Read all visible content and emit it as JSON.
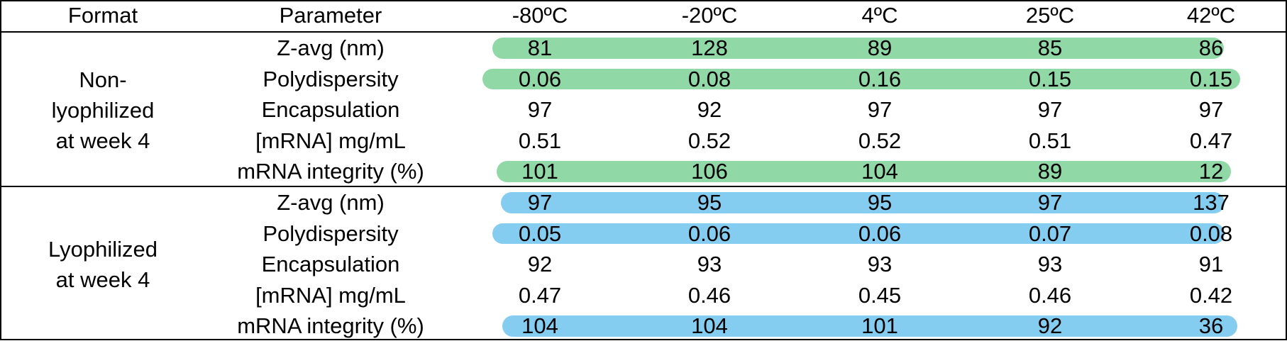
{
  "header": {
    "format": "Format",
    "parameter": "Parameter",
    "temps": [
      "-80ºC",
      "-20ºC",
      "4ºC",
      "25ºC",
      "42ºC"
    ]
  },
  "colors": {
    "green": "#90d9a6",
    "blue": "#84cdf0"
  },
  "groups": [
    {
      "format_lines": [
        "Non-",
        "lyophilized",
        "at week 4"
      ],
      "highlight_color": "green",
      "rows": [
        {
          "parameter": "Z-avg (nm)",
          "values": [
            "81",
            "128",
            "89",
            "85",
            "86"
          ],
          "highlighted": true
        },
        {
          "parameter": "Polydispersity",
          "values": [
            "0.06",
            "0.08",
            "0.16",
            "0.15",
            "0.15"
          ],
          "highlighted": true
        },
        {
          "parameter": "Encapsulation",
          "values": [
            "97",
            "92",
            "97",
            "97",
            "97"
          ],
          "highlighted": false
        },
        {
          "parameter": "[mRNA] mg/mL",
          "values": [
            "0.51",
            "0.52",
            "0.52",
            "0.51",
            "0.47"
          ],
          "highlighted": false
        },
        {
          "parameter": "mRNA integrity (%)",
          "values": [
            "101",
            "106",
            "104",
            "89",
            "12"
          ],
          "highlighted": true
        }
      ]
    },
    {
      "format_lines": [
        "Lyophilized",
        "at week 4"
      ],
      "highlight_color": "blue",
      "rows": [
        {
          "parameter": "Z-avg (nm)",
          "values": [
            "97",
            "95",
            "95",
            "97",
            "137"
          ],
          "highlighted": true
        },
        {
          "parameter": "Polydispersity",
          "values": [
            "0.05",
            "0.06",
            "0.06",
            "0.07",
            "0.08"
          ],
          "highlighted": true
        },
        {
          "parameter": "Encapsulation",
          "values": [
            "92",
            "93",
            "93",
            "93",
            "91"
          ],
          "highlighted": false
        },
        {
          "parameter": "[mRNA] mg/mL",
          "values": [
            "0.47",
            "0.46",
            "0.45",
            "0.46",
            "0.42"
          ],
          "highlighted": false
        },
        {
          "parameter": "mRNA integrity (%)",
          "values": [
            "104",
            "104",
            "101",
            "92",
            "36"
          ],
          "highlighted": true
        }
      ]
    }
  ]
}
